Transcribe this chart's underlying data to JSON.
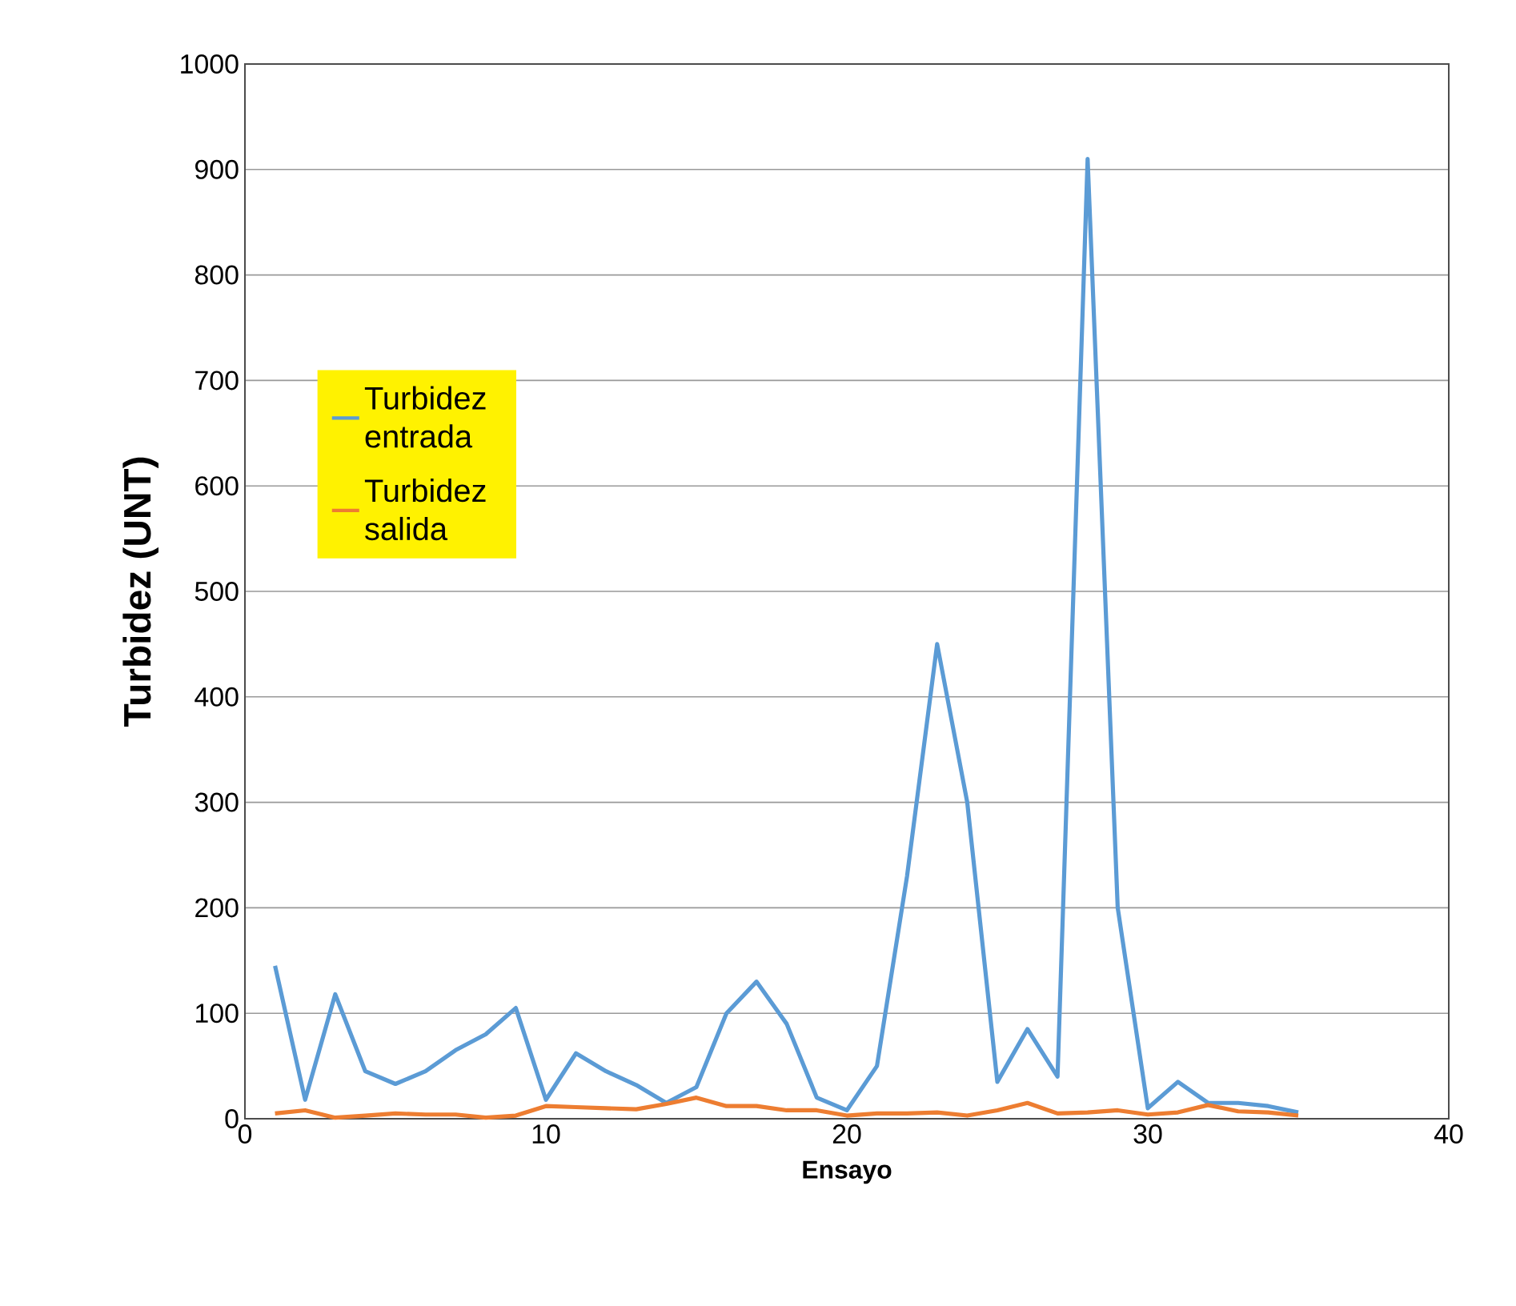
{
  "chart_data": {
    "type": "line",
    "xlabel": "Ensayo",
    "ylabel": "Turbidez (UNT)",
    "x": [
      1,
      2,
      3,
      4,
      5,
      6,
      7,
      8,
      9,
      10,
      11,
      12,
      13,
      14,
      15,
      16,
      17,
      18,
      19,
      20,
      21,
      22,
      23,
      24,
      25,
      26,
      27,
      28,
      29,
      30,
      31,
      32,
      33,
      34,
      35
    ],
    "series": [
      {
        "name": "Turbidez entrada",
        "color": "#5b9bd5",
        "values": [
          145,
          18,
          118,
          45,
          33,
          45,
          65,
          80,
          105,
          18,
          62,
          45,
          32,
          15,
          30,
          100,
          130,
          90,
          20,
          8,
          50,
          230,
          450,
          300,
          35,
          85,
          40,
          910,
          200,
          10,
          35,
          15,
          15,
          12,
          6
        ]
      },
      {
        "name": "Turbidez salida",
        "color": "#ed7d31",
        "values": [
          5,
          8,
          1,
          3,
          5,
          4,
          4,
          1,
          3,
          12,
          11,
          10,
          9,
          14,
          20,
          12,
          12,
          8,
          8,
          3,
          5,
          5,
          6,
          3,
          8,
          15,
          5,
          6,
          8,
          4,
          6,
          13,
          7,
          6,
          3
        ]
      }
    ],
    "xlim": [
      0,
      40
    ],
    "xticks": [
      0,
      10,
      20,
      30,
      40
    ],
    "ylim": [
      0,
      1000
    ],
    "yticks": [
      0,
      100,
      200,
      300,
      400,
      500,
      600,
      700,
      800,
      900,
      1000
    ],
    "grid": "y",
    "legend": "left",
    "marker": "none",
    "line_style": "solid"
  }
}
